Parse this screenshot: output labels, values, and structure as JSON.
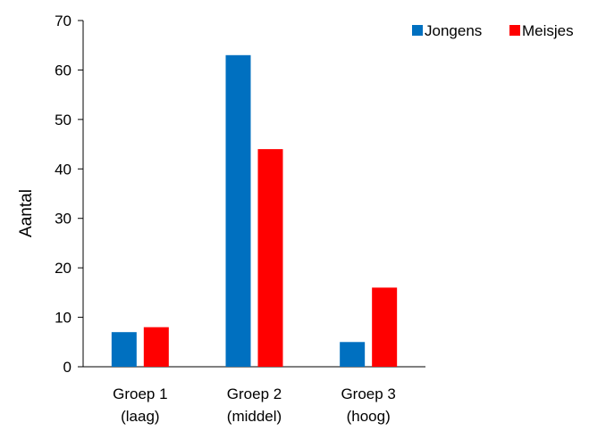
{
  "chart_data": {
    "type": "bar",
    "categories": [
      [
        "Groep 1",
        "(laag)"
      ],
      [
        "Groep 2",
        "(middel)"
      ],
      [
        "Groep 3",
        "(hoog)"
      ]
    ],
    "series": [
      {
        "name": "Jongens",
        "values": [
          7,
          63,
          5
        ],
        "color": "#0070C0"
      },
      {
        "name": "Meisjes",
        "values": [
          8,
          44,
          16
        ],
        "color": "#FF0000"
      }
    ],
    "title": "",
    "xlabel": "",
    "ylabel": "Aantal",
    "ylim": [
      0,
      70
    ],
    "yticks": [
      0,
      10,
      20,
      30,
      40,
      50,
      60,
      70
    ],
    "grid": false,
    "legend_position": "top-right"
  }
}
